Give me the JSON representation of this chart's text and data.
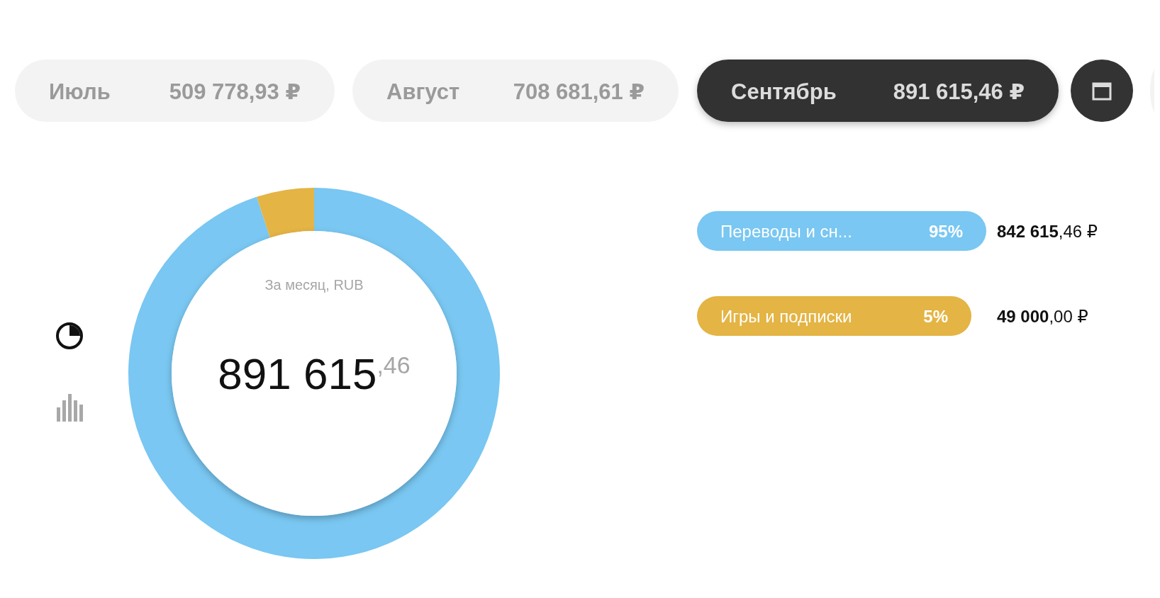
{
  "chart_data": {
    "type": "donut",
    "title": "891 615$^{,46}$",
    "subtitle": "За месяц, RUB",
    "categories": [
      "Переводы и сн...",
      "Игры и подписки"
    ],
    "values": [
      95,
      5
    ],
    "colors": [
      "#79c7f2",
      "#e4b444"
    ],
    "legend": "right",
    "annotations": [
      "Июль",
      "509 778,93 ₽",
      "Август",
      "708 681,61 ₽",
      "Сентябрь",
      "891 615,46 ₽",
      "95%",
      "842 615,46 ₽",
      "5%",
      "49 000,00 ₽"
    ]
  }
}
